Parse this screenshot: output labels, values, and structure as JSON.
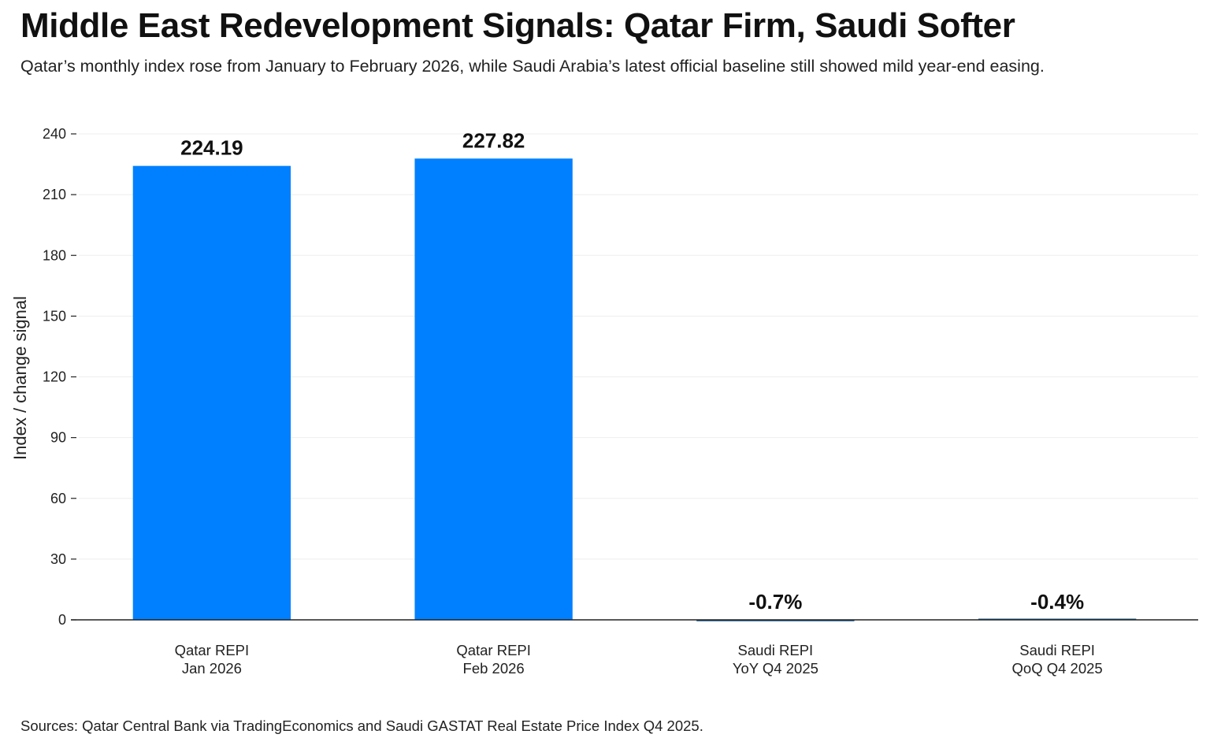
{
  "chart_data": {
    "type": "bar",
    "title": "Middle East Redevelopment Signals: Qatar Firm, Saudi Softer",
    "subtitle": "Qatar’s monthly index rose from January to February 2026, while Saudi Arabia’s latest official baseline still showed mild year-end easing.",
    "source": "Sources: Qatar Central Bank via TradingEconomics and Saudi GASTAT Real Estate Price Index Q4 2025.",
    "ylabel": "Index / change signal",
    "xlabel": "",
    "ylim": [
      0,
      240
    ],
    "yticks": [
      0,
      30,
      60,
      90,
      120,
      150,
      180,
      210,
      240
    ],
    "grid": true,
    "categories": [
      [
        "Qatar REPI",
        "Jan 2026"
      ],
      [
        "Qatar REPI",
        "Feb 2026"
      ],
      [
        "Saudi REPI",
        "YoY Q4 2025"
      ],
      [
        "Saudi REPI",
        "QoQ Q4 2025"
      ]
    ],
    "values": [
      224.19,
      227.82,
      -0.7,
      -0.4
    ],
    "data_labels": [
      "224.19",
      "227.82",
      "-0.7%",
      "-0.4%"
    ],
    "bar_colors": [
      "#0080ff",
      "#0080ff",
      "#1a5a8c",
      "#1a5a8c"
    ]
  },
  "colors": {
    "grid": "#eeeeee",
    "axis": "#222222"
  }
}
